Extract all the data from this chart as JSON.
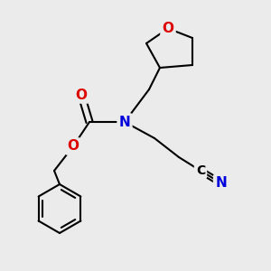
{
  "bg_color": "#ebebeb",
  "atom_colors": {
    "N": "#0000dd",
    "O": "#dd0000",
    "C": "#000000",
    "CN": "#0000dd"
  },
  "bond_color": "#000000",
  "bond_lw": 1.5,
  "font_size_atom": 11,
  "title": ""
}
